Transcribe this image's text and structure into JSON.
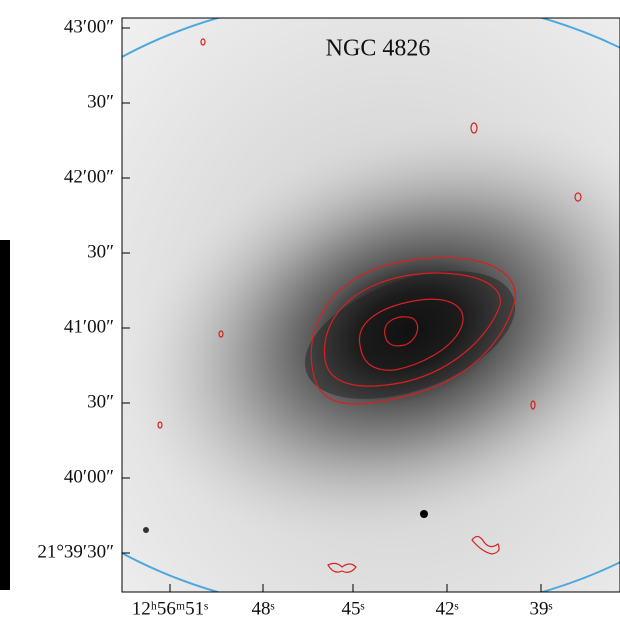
{
  "figure": {
    "title": "NGC 4826",
    "y_labels": [
      "43′00″",
      "30″",
      "42′00″",
      "30″",
      "41′00″",
      "30″",
      "40′00″",
      "21°39′30″"
    ],
    "x_labels": [
      "12ʰ56ᵐ51ˢ",
      "48ˢ",
      "45ˢ",
      "42ˢ",
      "39ˢ"
    ]
  }
}
